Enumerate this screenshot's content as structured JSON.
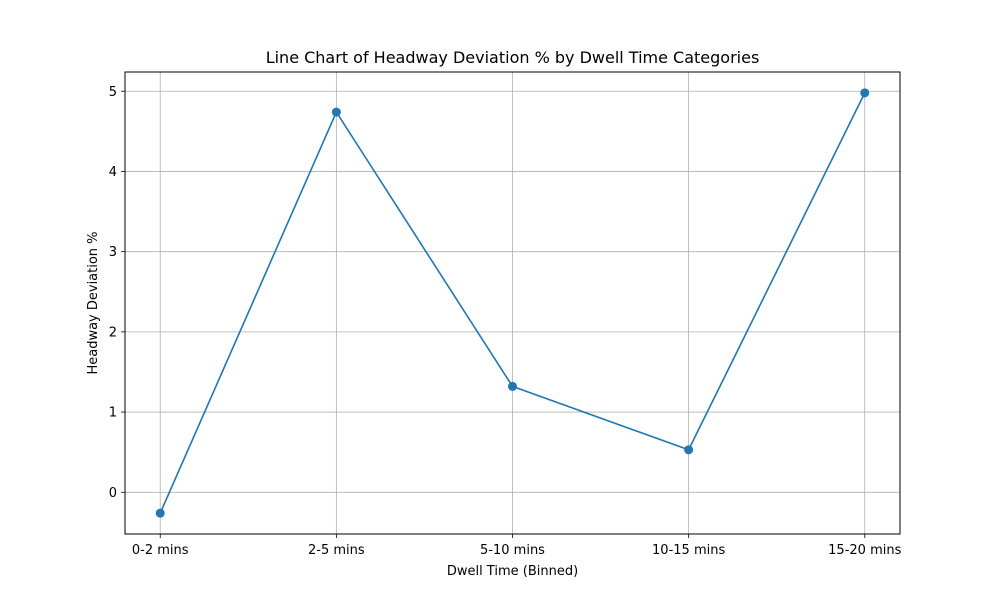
{
  "chart_data": {
    "type": "line",
    "title": "Line Chart of Headway Deviation % by Dwell Time Categories",
    "xlabel": "Dwell Time (Binned)",
    "ylabel": "Headway Deviation %",
    "categories": [
      "0-2 mins",
      "2-5 mins",
      "5-10 mins",
      "10-15 mins",
      "15-20 mins"
    ],
    "series": [
      {
        "values": [
          -0.26,
          4.74,
          1.32,
          0.53,
          4.98
        ]
      }
    ],
    "yticks": [
      0,
      1,
      2,
      3,
      4,
      5
    ],
    "ylim": [
      -0.52,
      5.24
    ],
    "grid": true,
    "line_color": "#1f77b4",
    "grid_color": "#b0b0b0"
  }
}
